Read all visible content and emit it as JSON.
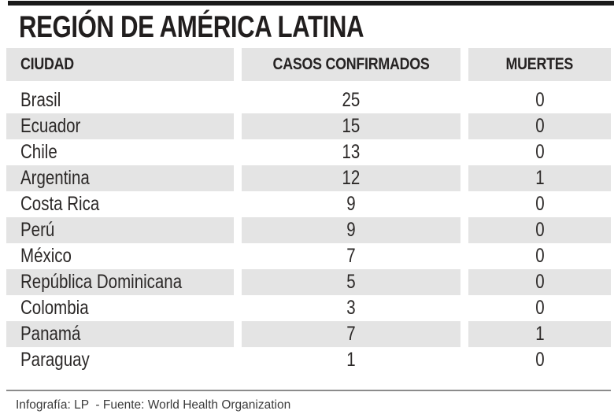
{
  "chart_data": {
    "type": "table",
    "title": "REGIÓN DE AMÉRICA LATINA",
    "columns": [
      "CIUDAD",
      "CASOS CONFIRMADOS",
      "MUERTES"
    ],
    "rows": [
      [
        "Brasil",
        25,
        0
      ],
      [
        "Ecuador",
        15,
        0
      ],
      [
        "Chile",
        13,
        0
      ],
      [
        "Argentina",
        12,
        1
      ],
      [
        "Costa Rica",
        9,
        0
      ],
      [
        "Perú",
        9,
        0
      ],
      [
        "México",
        7,
        0
      ],
      [
        "República Dominicana",
        5,
        0
      ],
      [
        "Colombia",
        3,
        0
      ],
      [
        "Panamá",
        7,
        1
      ],
      [
        "Paraguay",
        1,
        0
      ]
    ],
    "layout_hints": {
      "zebra_striping": "even rows shaded",
      "column_alignment": [
        "left",
        "center",
        "center"
      ]
    }
  },
  "footer": {
    "credit": "Infografía: LP  - Fuente: World Health Organization"
  },
  "colors": {
    "background": "#ffffff",
    "top_rule": "#1a1a1a",
    "title_text": "#211e1e",
    "header_block_bg": "#e4e4e4",
    "row_stripe_bg": "#e4e4e4",
    "body_text": "#2b2827",
    "divider": "#8c8c8c",
    "credit_text": "#3b3b3b"
  }
}
